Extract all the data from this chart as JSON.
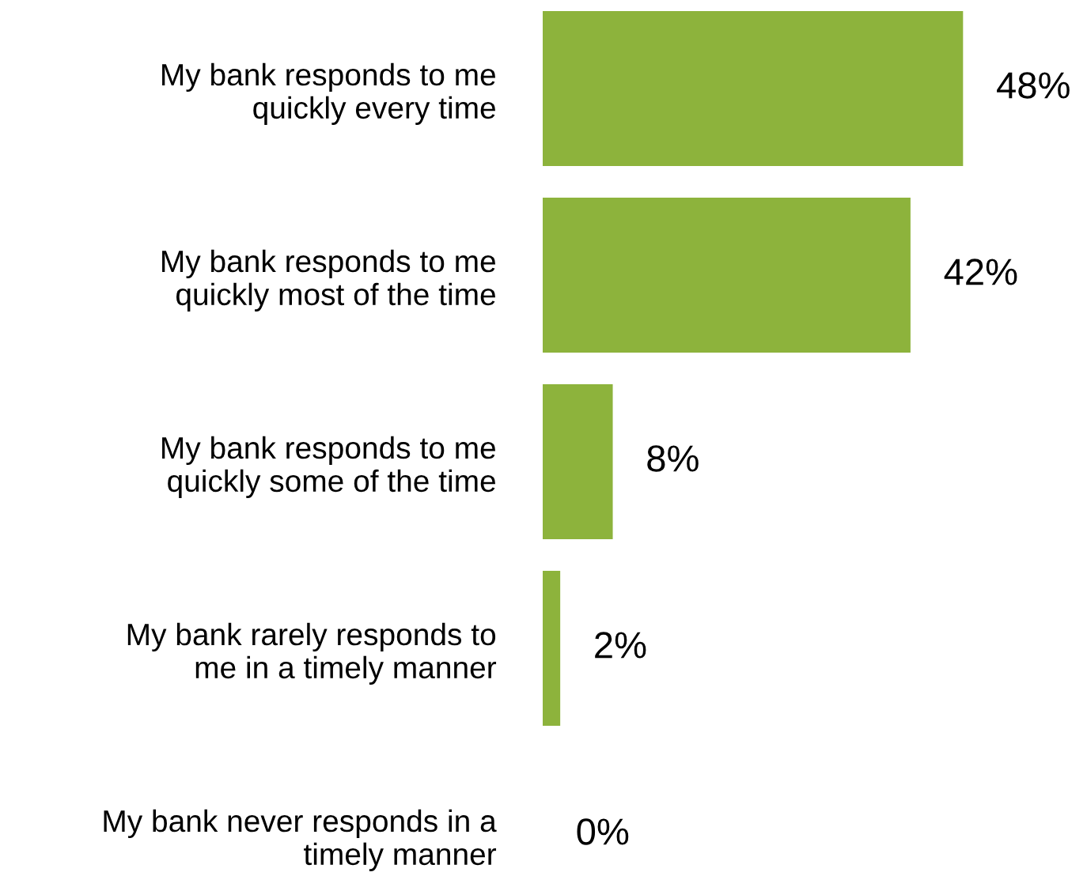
{
  "chart_data": {
    "type": "bar",
    "orientation": "horizontal",
    "categories": [
      "My bank responds to me\nquickly every time",
      "My bank responds to me\nquickly most of the time",
      "My bank responds to me\nquickly some of the time",
      "My bank rarely responds to\nme in a timely manner",
      "My bank never responds in a\ntimely manner"
    ],
    "values": [
      48,
      42,
      8,
      2,
      0
    ],
    "value_labels": [
      "48%",
      "42%",
      "8%",
      "2%",
      "0%"
    ],
    "color": "#8db33c",
    "grid": false,
    "legend": false
  }
}
